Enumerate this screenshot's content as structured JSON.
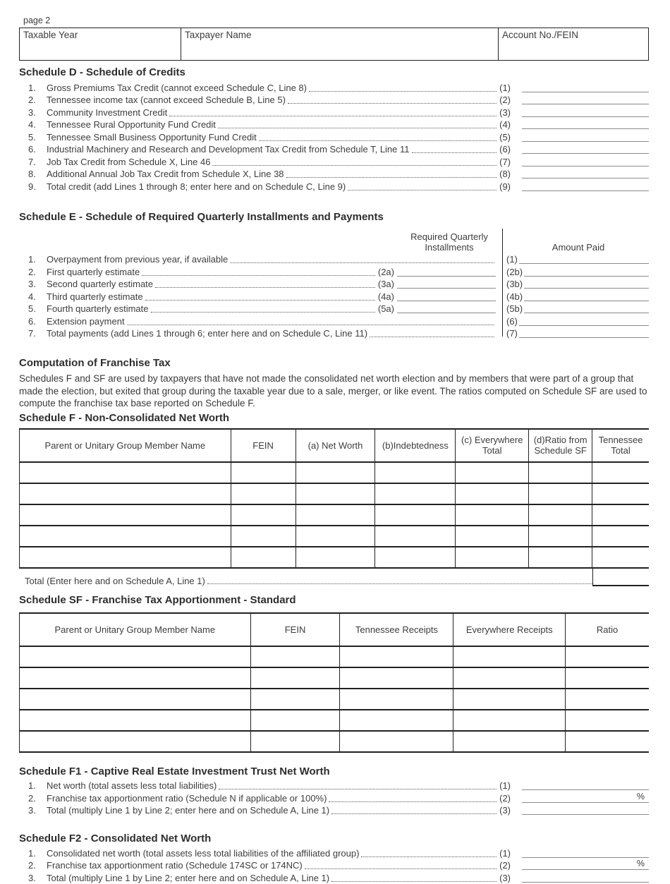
{
  "page_label": "page 2",
  "top_fields": [
    {
      "label": "Taxable Year"
    },
    {
      "label": "Taxpayer Name"
    },
    {
      "label": "Account No./FEIN"
    }
  ],
  "schedule_d": {
    "title": "Schedule D - Schedule of Credits",
    "lines": [
      {
        "num": "1.",
        "label": "Gross Premiums Tax Credit (cannot exceed Schedule C, Line 8)",
        "ref": "(1)",
        "suffix": ""
      },
      {
        "num": "2.",
        "label": "Tennessee income tax (cannot exceed Schedule B, Line 5)",
        "ref": "(2)",
        "suffix": ""
      },
      {
        "num": "3.",
        "label": "Community Investment Credit ",
        "ref": "(3)",
        "suffix": ""
      },
      {
        "num": "4.",
        "label": "Tennessee Rural Opportunity Fund Credit ",
        "ref": "(4)",
        "suffix": ""
      },
      {
        "num": "5.",
        "label": "Tennessee Small Business Opportunity Fund Credit ",
        "ref": "(5)",
        "suffix": ""
      },
      {
        "num": "6.",
        "label": "Industrial Machinery and Research and Development Tax Credit from Schedule T, Line 11",
        "ref": "(6)",
        "suffix": ""
      },
      {
        "num": "7.",
        "label": "Job Tax Credit from Schedule X, Line 46",
        "ref": "(7)",
        "suffix": ""
      },
      {
        "num": "8.",
        "label": "Additional Annual Job Tax Credit from Schedule X, Line 38",
        "ref": "(8)",
        "suffix": ""
      },
      {
        "num": "9.",
        "label": "Total credit (add Lines 1 through 8; enter here and on Schedule C, Line 9)",
        "ref": "(9)",
        "suffix": ""
      }
    ]
  },
  "schedule_e": {
    "title": "Schedule E - Schedule of Required Quarterly Installments and Payments",
    "col_installments_line1": "Required Quarterly",
    "col_installments_line2": "Installments",
    "col_amount_paid": "Amount Paid",
    "lines": [
      {
        "num": "1.",
        "label": "Overpayment from previous year, if available ",
        "mid": "",
        "right": "(1)"
      },
      {
        "num": "2.",
        "label": "First quarterly estimate ",
        "mid": "(2a)",
        "right": "(2b)"
      },
      {
        "num": "3.",
        "label": "Second quarterly estimate ",
        "mid": "(3a)",
        "right": "(3b)"
      },
      {
        "num": "4.",
        "label": "Third quarterly estimate",
        "mid": "(4a)",
        "right": "(4b)"
      },
      {
        "num": "5.",
        "label": "Fourth quarterly estimate ",
        "mid": "(5a)",
        "right": "(5b)"
      },
      {
        "num": "6.",
        "label": "Extension payment",
        "mid": "",
        "right": "(6)"
      },
      {
        "num": "7.",
        "label": "Total payments (add Lines 1 through 6; enter here and on Schedule C, Line 11) ",
        "mid": "",
        "right": "(7)"
      }
    ]
  },
  "franchise_computation": {
    "title": "Computation of Franchise Tax",
    "paragraph": "Schedules F and SF are used by taxpayers that have not made the consolidated net worth election and by members that were part of a group that made the election, but exited that group during the taxable year due to a sale, merger, or like event.  The ratios computed on Schedule SF are used to compute the franchise tax base reported on Schedule F."
  },
  "schedule_f": {
    "title": "Schedule F - Non-Consolidated Net Worth",
    "columns": [
      "Parent or Unitary Group Member Name",
      "FEIN",
      "(a) Net Worth",
      "(b)Indebtedness",
      "(c) Everywhere Total",
      "(d)Ratio from Schedule SF",
      "Tennessee Total"
    ],
    "empty_rows": 5,
    "total_label": "Total (Enter here and on Schedule A, Line 1)"
  },
  "schedule_sf": {
    "title": "Schedule SF - Franchise Tax Apportionment - Standard",
    "columns": [
      "Parent or Unitary Group Member Name",
      "FEIN",
      "Tennessee Receipts",
      "Everywhere Receipts",
      "Ratio"
    ],
    "empty_rows": 5
  },
  "schedule_f1": {
    "title": "Schedule F1 - Captive Real Estate Investment Trust Net Worth",
    "lines": [
      {
        "num": "1.",
        "label": "Net worth (total assets less total liabilities)",
        "ref": "(1)",
        "suffix": ""
      },
      {
        "num": "2.",
        "label": "Franchise tax apportionment ratio (Schedule N if applicable or 100%)",
        "ref": "(2)",
        "suffix": "%"
      },
      {
        "num": "3.",
        "label": "Total (multiply Line 1 by Line 2; enter here and on Schedule A, Line 1)",
        "ref": "(3)",
        "suffix": ""
      }
    ]
  },
  "schedule_f2": {
    "title": "Schedule F2 - Consolidated Net Worth",
    "lines": [
      {
        "num": "1.",
        "label": "Consolidated net worth (total assets less total liabilities of the affiliated group)",
        "ref": "(1)",
        "suffix": ""
      },
      {
        "num": "2.",
        "label": "Franchise tax apportionment ratio (Schedule 174SC or 174NC)",
        "ref": "(2)",
        "suffix": "%"
      },
      {
        "num": "3.",
        "label": "Total (multiply Line 1 by Line 2; enter here and on Schedule A, Line 1)",
        "ref": "(3)",
        "suffix": ""
      }
    ]
  }
}
